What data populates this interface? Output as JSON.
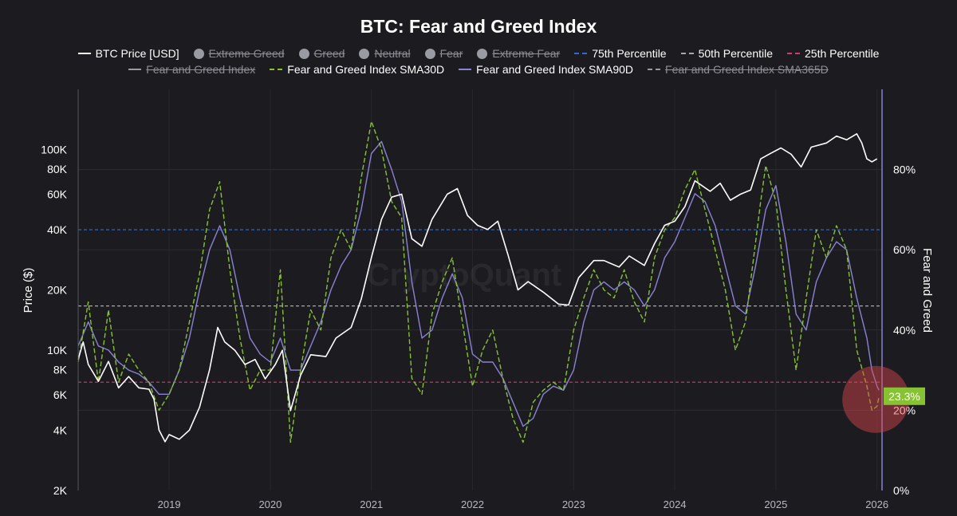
{
  "chart_data": {
    "type": "line",
    "title": "BTC: Fear and Greed Index",
    "y_left_label": "Price ($)",
    "y_right_label": "Fear and Greed",
    "y_left_scale": "log",
    "y_left_range": [
      2000,
      200000
    ],
    "y_left_ticks": [
      "100K",
      "80K",
      "60K",
      "40K",
      "20K",
      "10K",
      "8K",
      "6K",
      "4K",
      "2K"
    ],
    "y_left_tick_values": [
      100000,
      80000,
      60000,
      40000,
      20000,
      10000,
      8000,
      6000,
      4000,
      2000
    ],
    "y_right_range": [
      0,
      100
    ],
    "y_right_ticks": [
      "80%",
      "60%",
      "40%",
      "20%",
      "0%"
    ],
    "y_right_tick_values": [
      80,
      60,
      40,
      20,
      0
    ],
    "x_range": [
      2018.1,
      2026.05
    ],
    "x_ticks": [
      "2019",
      "2020",
      "2021",
      "2022",
      "2023",
      "2024",
      "2025",
      "2026"
    ],
    "x_tick_values": [
      2019,
      2020,
      2021,
      2022,
      2023,
      2024,
      2025,
      2026
    ],
    "grid": true,
    "watermark": "CryptoQuant",
    "last_value_label": "23.3%",
    "legend": [
      {
        "name": "BTC Price [USD]",
        "style": "line",
        "color": "#ffffff",
        "visible": true
      },
      {
        "name": "Extreme Greed",
        "style": "dot",
        "color": "#9a9aa3",
        "visible": false
      },
      {
        "name": "Greed",
        "style": "dot",
        "color": "#9a9aa3",
        "visible": false
      },
      {
        "name": "Neutral",
        "style": "dot",
        "color": "#9a9aa3",
        "visible": false
      },
      {
        "name": "Fear",
        "style": "dot",
        "color": "#9a9aa3",
        "visible": false
      },
      {
        "name": "Extreme Fear",
        "style": "dot",
        "color": "#9a9aa3",
        "visible": false
      },
      {
        "name": "75th Percentile",
        "style": "dash",
        "color": "#2f6bd6",
        "visible": true
      },
      {
        "name": "50th Percentile",
        "style": "dash",
        "color": "#a8a8a8",
        "visible": true
      },
      {
        "name": "25th Percentile",
        "style": "dash",
        "color": "#d63a6c",
        "visible": true
      },
      {
        "name": "Fear and Greed Index",
        "style": "line",
        "color": "#9a9aa3",
        "visible": false
      },
      {
        "name": "Fear and Greed Index SMA30D",
        "style": "dash",
        "color": "#86c232",
        "visible": true
      },
      {
        "name": "Fear and Greed Index SMA90D",
        "style": "line",
        "color": "#8a82d4",
        "visible": true
      },
      {
        "name": "Fear and Greed Index SMA365D",
        "style": "dash",
        "color": "#9a9aa3",
        "visible": false
      }
    ],
    "percentiles": {
      "p75": 65,
      "p50": 46,
      "p25": 27
    },
    "series": [
      {
        "name": "BTC Price [USD]",
        "axis": "left",
        "color": "#ffffff",
        "points": [
          [
            2018.1,
            9000
          ],
          [
            2018.15,
            11000
          ],
          [
            2018.2,
            8500
          ],
          [
            2018.3,
            7000
          ],
          [
            2018.4,
            8800
          ],
          [
            2018.5,
            6500
          ],
          [
            2018.6,
            7400
          ],
          [
            2018.7,
            6500
          ],
          [
            2018.8,
            6400
          ],
          [
            2018.85,
            5700
          ],
          [
            2018.9,
            4000
          ],
          [
            2018.96,
            3500
          ],
          [
            2019.0,
            3800
          ],
          [
            2019.1,
            3600
          ],
          [
            2019.2,
            4000
          ],
          [
            2019.3,
            5200
          ],
          [
            2019.4,
            8000
          ],
          [
            2019.48,
            13000
          ],
          [
            2019.55,
            11000
          ],
          [
            2019.65,
            10000
          ],
          [
            2019.75,
            8500
          ],
          [
            2019.85,
            9000
          ],
          [
            2019.95,
            7200
          ],
          [
            2020.05,
            8500
          ],
          [
            2020.12,
            10000
          ],
          [
            2020.2,
            5000
          ],
          [
            2020.3,
            7500
          ],
          [
            2020.4,
            9500
          ],
          [
            2020.55,
            9300
          ],
          [
            2020.65,
            11500
          ],
          [
            2020.8,
            13000
          ],
          [
            2020.9,
            18000
          ],
          [
            2021.0,
            29000
          ],
          [
            2021.1,
            45000
          ],
          [
            2021.2,
            58000
          ],
          [
            2021.3,
            60000
          ],
          [
            2021.4,
            36000
          ],
          [
            2021.5,
            33000
          ],
          [
            2021.6,
            45000
          ],
          [
            2021.75,
            60000
          ],
          [
            2021.85,
            64000
          ],
          [
            2021.95,
            47000
          ],
          [
            2022.05,
            42000
          ],
          [
            2022.15,
            40000
          ],
          [
            2022.25,
            44000
          ],
          [
            2022.35,
            30000
          ],
          [
            2022.45,
            20000
          ],
          [
            2022.55,
            22000
          ],
          [
            2022.7,
            19500
          ],
          [
            2022.85,
            17000
          ],
          [
            2022.95,
            16800
          ],
          [
            2023.05,
            23000
          ],
          [
            2023.2,
            28000
          ],
          [
            2023.3,
            28000
          ],
          [
            2023.45,
            26000
          ],
          [
            2023.55,
            29500
          ],
          [
            2023.7,
            26500
          ],
          [
            2023.8,
            34000
          ],
          [
            2023.9,
            42000
          ],
          [
            2024.0,
            44000
          ],
          [
            2024.1,
            52000
          ],
          [
            2024.2,
            70000
          ],
          [
            2024.35,
            62000
          ],
          [
            2024.45,
            68000
          ],
          [
            2024.55,
            56000
          ],
          [
            2024.65,
            60000
          ],
          [
            2024.75,
            63000
          ],
          [
            2024.85,
            90000
          ],
          [
            2024.95,
            96000
          ],
          [
            2025.05,
            102000
          ],
          [
            2025.15,
            95000
          ],
          [
            2025.25,
            82000
          ],
          [
            2025.35,
            103000
          ],
          [
            2025.5,
            108000
          ],
          [
            2025.6,
            117000
          ],
          [
            2025.7,
            112000
          ],
          [
            2025.8,
            120000
          ],
          [
            2025.85,
            108000
          ],
          [
            2025.9,
            90000
          ],
          [
            2025.95,
            87000
          ],
          [
            2026.0,
            90000
          ]
        ]
      },
      {
        "name": "Fear and Greed Index SMA30D",
        "axis": "right",
        "color": "#86c232",
        "points": [
          [
            2018.1,
            32
          ],
          [
            2018.2,
            47
          ],
          [
            2018.3,
            27
          ],
          [
            2018.4,
            45
          ],
          [
            2018.5,
            27
          ],
          [
            2018.6,
            34
          ],
          [
            2018.7,
            30
          ],
          [
            2018.8,
            27
          ],
          [
            2018.9,
            20
          ],
          [
            2019.0,
            24
          ],
          [
            2019.1,
            30
          ],
          [
            2019.2,
            42
          ],
          [
            2019.3,
            54
          ],
          [
            2019.4,
            70
          ],
          [
            2019.5,
            77
          ],
          [
            2019.6,
            55
          ],
          [
            2019.7,
            38
          ],
          [
            2019.8,
            25
          ],
          [
            2019.9,
            30
          ],
          [
            2020.0,
            30
          ],
          [
            2020.1,
            55
          ],
          [
            2020.2,
            12
          ],
          [
            2020.3,
            30
          ],
          [
            2020.4,
            45
          ],
          [
            2020.5,
            40
          ],
          [
            2020.6,
            58
          ],
          [
            2020.7,
            65
          ],
          [
            2020.8,
            60
          ],
          [
            2020.9,
            78
          ],
          [
            2021.0,
            92
          ],
          [
            2021.1,
            85
          ],
          [
            2021.2,
            72
          ],
          [
            2021.3,
            68
          ],
          [
            2021.4,
            28
          ],
          [
            2021.5,
            24
          ],
          [
            2021.6,
            44
          ],
          [
            2021.7,
            52
          ],
          [
            2021.8,
            58
          ],
          [
            2021.9,
            42
          ],
          [
            2022.0,
            26
          ],
          [
            2022.1,
            35
          ],
          [
            2022.2,
            40
          ],
          [
            2022.3,
            28
          ],
          [
            2022.4,
            18
          ],
          [
            2022.5,
            12
          ],
          [
            2022.6,
            22
          ],
          [
            2022.7,
            25
          ],
          [
            2022.8,
            27
          ],
          [
            2022.9,
            25
          ],
          [
            2023.0,
            40
          ],
          [
            2023.1,
            48
          ],
          [
            2023.2,
            55
          ],
          [
            2023.3,
            50
          ],
          [
            2023.4,
            48
          ],
          [
            2023.5,
            55
          ],
          [
            2023.6,
            47
          ],
          [
            2023.7,
            42
          ],
          [
            2023.8,
            58
          ],
          [
            2023.9,
            65
          ],
          [
            2024.0,
            68
          ],
          [
            2024.1,
            75
          ],
          [
            2024.2,
            80
          ],
          [
            2024.3,
            70
          ],
          [
            2024.4,
            60
          ],
          [
            2024.5,
            50
          ],
          [
            2024.6,
            35
          ],
          [
            2024.7,
            42
          ],
          [
            2024.8,
            62
          ],
          [
            2024.85,
            72
          ],
          [
            2024.9,
            81
          ],
          [
            2025.0,
            72
          ],
          [
            2025.1,
            50
          ],
          [
            2025.2,
            30
          ],
          [
            2025.3,
            48
          ],
          [
            2025.4,
            65
          ],
          [
            2025.5,
            58
          ],
          [
            2025.6,
            66
          ],
          [
            2025.7,
            60
          ],
          [
            2025.8,
            35
          ],
          [
            2025.9,
            26
          ],
          [
            2025.95,
            20
          ],
          [
            2026.0,
            21
          ],
          [
            2026.02,
            23.3
          ]
        ]
      },
      {
        "name": "Fear and Greed Index SMA90D",
        "axis": "right",
        "color": "#8a82d4",
        "points": [
          [
            2018.1,
            36
          ],
          [
            2018.2,
            42
          ],
          [
            2018.3,
            36
          ],
          [
            2018.4,
            35
          ],
          [
            2018.5,
            32
          ],
          [
            2018.6,
            30
          ],
          [
            2018.7,
            29
          ],
          [
            2018.8,
            27
          ],
          [
            2018.9,
            24
          ],
          [
            2019.0,
            24
          ],
          [
            2019.1,
            30
          ],
          [
            2019.2,
            38
          ],
          [
            2019.3,
            50
          ],
          [
            2019.4,
            60
          ],
          [
            2019.5,
            66
          ],
          [
            2019.6,
            60
          ],
          [
            2019.7,
            48
          ],
          [
            2019.8,
            38
          ],
          [
            2019.9,
            34
          ],
          [
            2020.0,
            32
          ],
          [
            2020.1,
            38
          ],
          [
            2020.2,
            30
          ],
          [
            2020.3,
            30
          ],
          [
            2020.4,
            36
          ],
          [
            2020.5,
            42
          ],
          [
            2020.6,
            50
          ],
          [
            2020.7,
            56
          ],
          [
            2020.8,
            60
          ],
          [
            2020.9,
            70
          ],
          [
            2021.0,
            84
          ],
          [
            2021.1,
            87
          ],
          [
            2021.2,
            80
          ],
          [
            2021.3,
            72
          ],
          [
            2021.4,
            52
          ],
          [
            2021.5,
            38
          ],
          [
            2021.6,
            40
          ],
          [
            2021.7,
            48
          ],
          [
            2021.8,
            54
          ],
          [
            2021.9,
            48
          ],
          [
            2022.0,
            34
          ],
          [
            2022.1,
            32
          ],
          [
            2022.2,
            32
          ],
          [
            2022.3,
            28
          ],
          [
            2022.4,
            22
          ],
          [
            2022.5,
            16
          ],
          [
            2022.6,
            18
          ],
          [
            2022.7,
            24
          ],
          [
            2022.8,
            26
          ],
          [
            2022.9,
            25
          ],
          [
            2023.0,
            30
          ],
          [
            2023.1,
            42
          ],
          [
            2023.2,
            50
          ],
          [
            2023.3,
            52
          ],
          [
            2023.4,
            50
          ],
          [
            2023.5,
            52
          ],
          [
            2023.6,
            50
          ],
          [
            2023.7,
            46
          ],
          [
            2023.8,
            50
          ],
          [
            2023.9,
            58
          ],
          [
            2024.0,
            62
          ],
          [
            2024.1,
            68
          ],
          [
            2024.2,
            74
          ],
          [
            2024.3,
            72
          ],
          [
            2024.4,
            66
          ],
          [
            2024.5,
            56
          ],
          [
            2024.6,
            46
          ],
          [
            2024.7,
            44
          ],
          [
            2024.8,
            56
          ],
          [
            2024.9,
            70
          ],
          [
            2025.0,
            76
          ],
          [
            2025.1,
            62
          ],
          [
            2025.2,
            44
          ],
          [
            2025.3,
            40
          ],
          [
            2025.4,
            52
          ],
          [
            2025.5,
            58
          ],
          [
            2025.6,
            62
          ],
          [
            2025.7,
            60
          ],
          [
            2025.8,
            48
          ],
          [
            2025.9,
            38
          ],
          [
            2025.95,
            30
          ],
          [
            2026.0,
            26
          ],
          [
            2026.02,
            25
          ]
        ]
      }
    ]
  }
}
